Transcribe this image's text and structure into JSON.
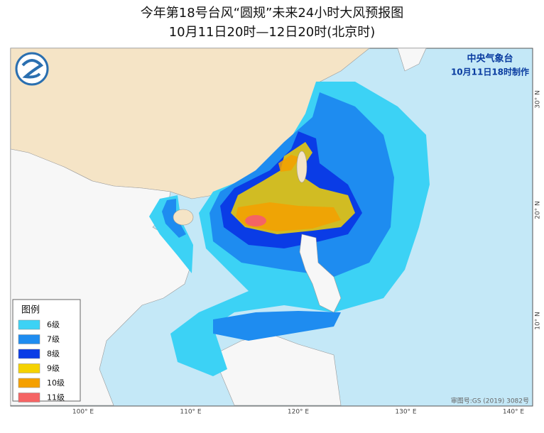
{
  "header": {
    "title": "今年第18号台风“圆规”未来24小时大风预报图",
    "subtitle": "10月11日20时—12日20时(北京时)"
  },
  "agency": {
    "name": "中央气象台",
    "issued": "10月11日18时制作"
  },
  "legend": {
    "title": "图例",
    "items": [
      {
        "label": "6级",
        "color": "#3cd2f5"
      },
      {
        "label": "7级",
        "color": "#1e8cf0"
      },
      {
        "label": "8级",
        "color": "#0a3ce6"
      },
      {
        "label": "9级",
        "color": "#f5d200"
      },
      {
        "label": "10级",
        "color": "#f5a000"
      },
      {
        "label": "11级",
        "color": "#f56464"
      }
    ]
  },
  "lon_labels": [
    "100° E",
    "110° E",
    "120° E",
    "130° E",
    "140° E"
  ],
  "lat_labels": [
    "30° N",
    "20° N",
    "10° N"
  ],
  "approval": "审图号:GS (2019) 3082号"
}
